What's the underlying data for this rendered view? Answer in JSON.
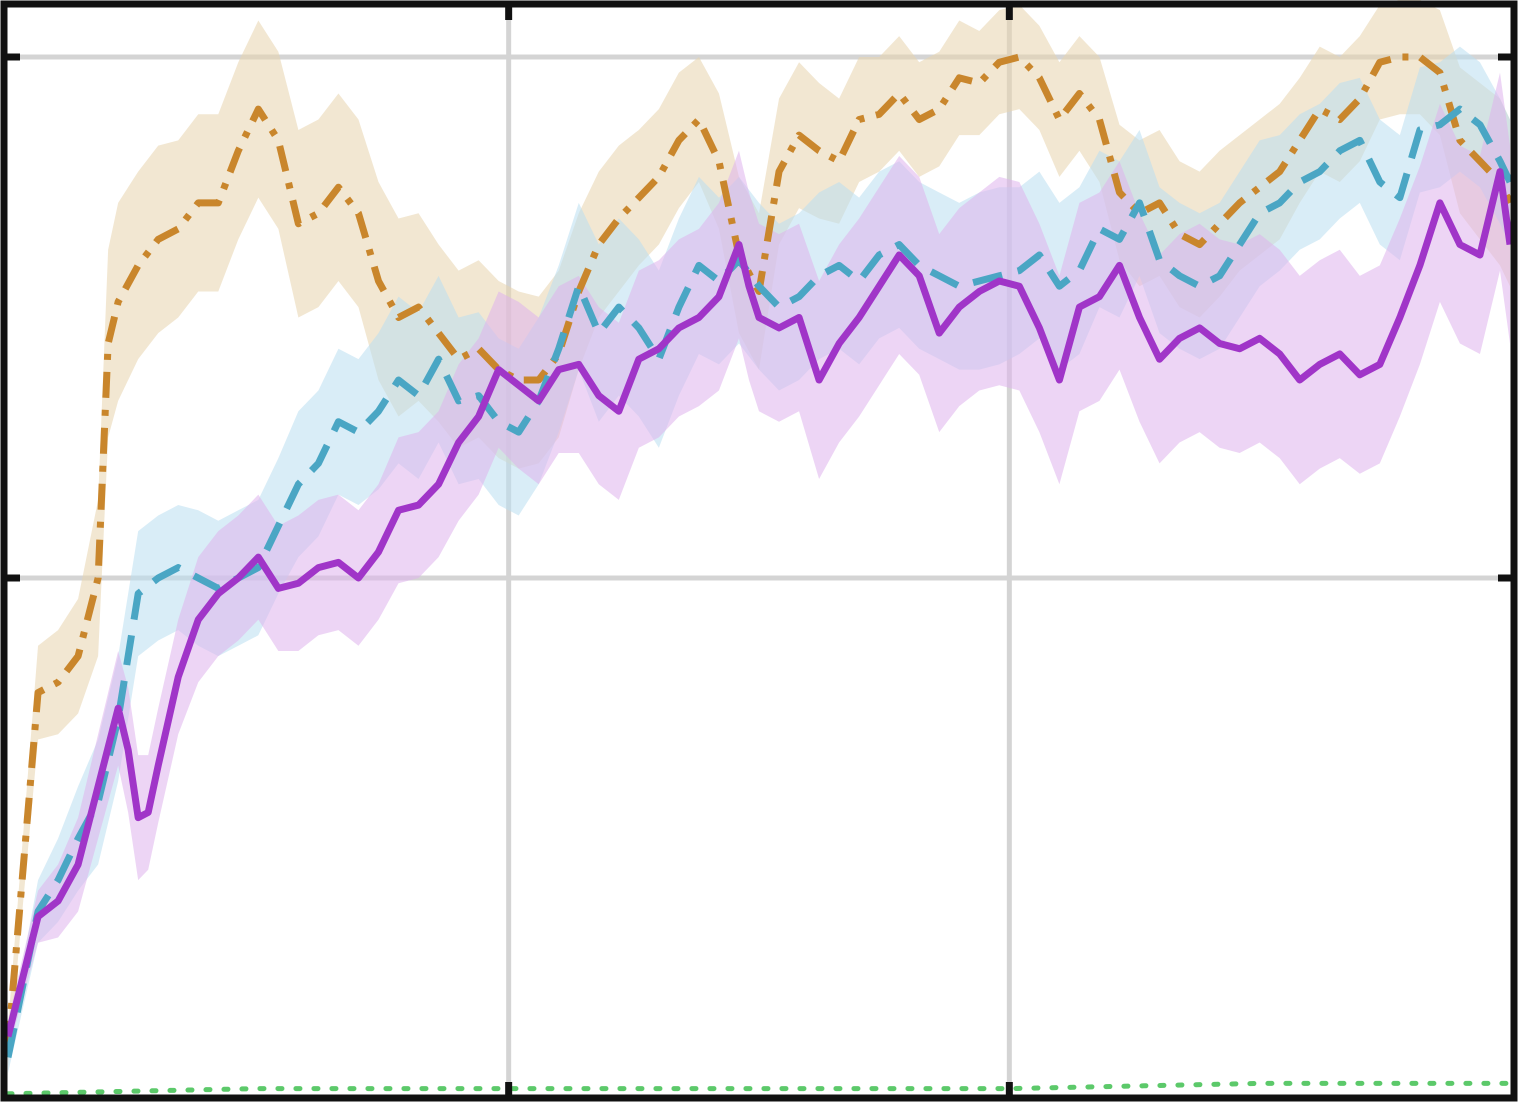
{
  "chart_data": {
    "type": "line",
    "title": "",
    "xlabel": "",
    "ylabel": "",
    "xlim": [
      0,
      3
    ],
    "ylim": [
      0,
      2.1
    ],
    "grid": true,
    "x_gridlines": [
      1,
      2
    ],
    "y_gridlines": [
      1,
      2
    ],
    "series": [
      {
        "style": "dashdot",
        "color": "#c9862c",
        "band_color": "#e8d3ad",
        "x": [
          0,
          0.06,
          0.1,
          0.14,
          0.18,
          0.2,
          0.22,
          0.26,
          0.3,
          0.34,
          0.38,
          0.42,
          0.46,
          0.5,
          0.54,
          0.58,
          0.62,
          0.66,
          0.7,
          0.74,
          0.78,
          0.82,
          0.86,
          0.9,
          0.94,
          0.98,
          1.02,
          1.06,
          1.1,
          1.14,
          1.18,
          1.22,
          1.26,
          1.3,
          1.34,
          1.38,
          1.42,
          1.46,
          1.5,
          1.54,
          1.58,
          1.62,
          1.66,
          1.7,
          1.74,
          1.78,
          1.82,
          1.86,
          1.9,
          1.94,
          1.98,
          2.02,
          2.06,
          2.1,
          2.14,
          2.18,
          2.22,
          2.26,
          2.3,
          2.34,
          2.38,
          2.42,
          2.46,
          2.5,
          2.54,
          2.58,
          2.62,
          2.66,
          2.7,
          2.74,
          2.78,
          2.82,
          2.86,
          2.9,
          2.94,
          2.98,
          3.0
        ],
        "y": [
          0.1,
          0.78,
          0.8,
          0.85,
          1.0,
          1.45,
          1.53,
          1.6,
          1.65,
          1.67,
          1.72,
          1.72,
          1.82,
          1.9,
          1.84,
          1.68,
          1.7,
          1.75,
          1.7,
          1.57,
          1.5,
          1.52,
          1.47,
          1.42,
          1.44,
          1.4,
          1.38,
          1.38,
          1.43,
          1.55,
          1.64,
          1.69,
          1.73,
          1.77,
          1.84,
          1.88,
          1.8,
          1.62,
          1.55,
          1.78,
          1.85,
          1.82,
          1.8,
          1.88,
          1.89,
          1.93,
          1.88,
          1.9,
          1.96,
          1.95,
          1.99,
          2.0,
          1.96,
          1.88,
          1.93,
          1.88,
          1.74,
          1.7,
          1.72,
          1.66,
          1.64,
          1.68,
          1.72,
          1.75,
          1.78,
          1.84,
          1.9,
          1.88,
          1.92,
          1.99,
          2.0,
          2.0,
          1.97,
          1.84,
          1.8,
          1.76,
          1.72
        ],
        "band_halfwidth": [
          0.04,
          0.09,
          0.1,
          0.11,
          0.15,
          0.18,
          0.19,
          0.18,
          0.18,
          0.17,
          0.17,
          0.17,
          0.17,
          0.17,
          0.17,
          0.18,
          0.18,
          0.18,
          0.18,
          0.19,
          0.19,
          0.18,
          0.17,
          0.17,
          0.17,
          0.17,
          0.17,
          0.16,
          0.16,
          0.15,
          0.14,
          0.14,
          0.13,
          0.13,
          0.13,
          0.12,
          0.13,
          0.15,
          0.15,
          0.14,
          0.14,
          0.13,
          0.12,
          0.12,
          0.11,
          0.11,
          0.11,
          0.11,
          0.11,
          0.1,
          0.1,
          0.1,
          0.1,
          0.11,
          0.11,
          0.12,
          0.13,
          0.14,
          0.14,
          0.14,
          0.14,
          0.14,
          0.13,
          0.13,
          0.13,
          0.12,
          0.12,
          0.12,
          0.12,
          0.11,
          0.11,
          0.11,
          0.12,
          0.14,
          0.15,
          0.16,
          0.16
        ]
      },
      {
        "style": "dashed",
        "color": "#4aa6c4",
        "band_color": "#b9dff0",
        "x": [
          0,
          0.06,
          0.1,
          0.14,
          0.18,
          0.22,
          0.26,
          0.3,
          0.34,
          0.38,
          0.42,
          0.46,
          0.5,
          0.54,
          0.58,
          0.62,
          0.66,
          0.7,
          0.74,
          0.78,
          0.82,
          0.86,
          0.9,
          0.94,
          0.98,
          1.02,
          1.06,
          1.1,
          1.14,
          1.18,
          1.22,
          1.26,
          1.3,
          1.34,
          1.38,
          1.42,
          1.46,
          1.5,
          1.54,
          1.58,
          1.62,
          1.66,
          1.7,
          1.74,
          1.78,
          1.82,
          1.86,
          1.9,
          1.94,
          1.98,
          2.02,
          2.06,
          2.1,
          2.14,
          2.18,
          2.22,
          2.26,
          2.3,
          2.34,
          2.38,
          2.42,
          2.46,
          2.5,
          2.54,
          2.58,
          2.62,
          2.66,
          2.7,
          2.74,
          2.78,
          2.82,
          2.86,
          2.9,
          2.94,
          2.98,
          3.0
        ],
        "y": [
          0.08,
          0.36,
          0.42,
          0.5,
          0.57,
          0.73,
          0.97,
          1.0,
          1.02,
          1.0,
          0.98,
          1.0,
          1.02,
          1.1,
          1.18,
          1.22,
          1.3,
          1.28,
          1.32,
          1.38,
          1.35,
          1.42,
          1.34,
          1.35,
          1.3,
          1.28,
          1.34,
          1.44,
          1.56,
          1.47,
          1.52,
          1.48,
          1.42,
          1.52,
          1.6,
          1.57,
          1.61,
          1.56,
          1.52,
          1.54,
          1.58,
          1.6,
          1.57,
          1.62,
          1.64,
          1.6,
          1.58,
          1.56,
          1.57,
          1.58,
          1.59,
          1.62,
          1.56,
          1.59,
          1.67,
          1.65,
          1.72,
          1.61,
          1.58,
          1.56,
          1.58,
          1.64,
          1.7,
          1.72,
          1.76,
          1.78,
          1.82,
          1.84,
          1.76,
          1.73,
          1.86,
          1.87,
          1.9,
          1.87,
          1.8,
          1.76
        ],
        "band_halfwidth": [
          0.03,
          0.06,
          0.08,
          0.1,
          0.12,
          0.12,
          0.12,
          0.12,
          0.12,
          0.13,
          0.13,
          0.13,
          0.13,
          0.13,
          0.14,
          0.14,
          0.14,
          0.14,
          0.15,
          0.16,
          0.16,
          0.16,
          0.16,
          0.16,
          0.16,
          0.16,
          0.16,
          0.16,
          0.16,
          0.17,
          0.17,
          0.17,
          0.17,
          0.17,
          0.17,
          0.16,
          0.16,
          0.16,
          0.16,
          0.16,
          0.16,
          0.16,
          0.16,
          0.16,
          0.16,
          0.16,
          0.16,
          0.16,
          0.17,
          0.17,
          0.16,
          0.16,
          0.16,
          0.16,
          0.15,
          0.15,
          0.14,
          0.14,
          0.14,
          0.14,
          0.14,
          0.14,
          0.14,
          0.13,
          0.13,
          0.13,
          0.13,
          0.12,
          0.12,
          0.12,
          0.12,
          0.12,
          0.12,
          0.12,
          0.12,
          0.12
        ]
      },
      {
        "style": "solid",
        "color": "#a035c8",
        "band_color": "#deb2ec",
        "x": [
          0,
          0.06,
          0.1,
          0.14,
          0.18,
          0.22,
          0.24,
          0.26,
          0.28,
          0.3,
          0.34,
          0.38,
          0.42,
          0.46,
          0.5,
          0.54,
          0.58,
          0.62,
          0.66,
          0.7,
          0.74,
          0.78,
          0.82,
          0.86,
          0.9,
          0.94,
          0.98,
          1.02,
          1.06,
          1.1,
          1.14,
          1.18,
          1.22,
          1.26,
          1.3,
          1.34,
          1.38,
          1.42,
          1.46,
          1.48,
          1.5,
          1.54,
          1.58,
          1.62,
          1.66,
          1.7,
          1.74,
          1.78,
          1.82,
          1.86,
          1.9,
          1.94,
          1.98,
          2.02,
          2.06,
          2.1,
          2.14,
          2.18,
          2.22,
          2.26,
          2.3,
          2.34,
          2.38,
          2.42,
          2.46,
          2.5,
          2.54,
          2.58,
          2.62,
          2.66,
          2.7,
          2.74,
          2.78,
          2.82,
          2.86,
          2.9,
          2.94,
          2.98,
          3.0
        ],
        "y": [
          0.12,
          0.35,
          0.38,
          0.45,
          0.6,
          0.75,
          0.67,
          0.54,
          0.55,
          0.64,
          0.81,
          0.92,
          0.97,
          1.0,
          1.04,
          0.98,
          0.99,
          1.02,
          1.03,
          1.0,
          1.05,
          1.13,
          1.14,
          1.18,
          1.26,
          1.31,
          1.4,
          1.37,
          1.34,
          1.4,
          1.41,
          1.35,
          1.32,
          1.42,
          1.44,
          1.48,
          1.5,
          1.54,
          1.64,
          1.56,
          1.5,
          1.48,
          1.5,
          1.38,
          1.45,
          1.5,
          1.56,
          1.62,
          1.58,
          1.47,
          1.52,
          1.55,
          1.57,
          1.56,
          1.48,
          1.38,
          1.52,
          1.54,
          1.6,
          1.5,
          1.42,
          1.46,
          1.48,
          1.45,
          1.44,
          1.46,
          1.43,
          1.38,
          1.41,
          1.43,
          1.39,
          1.41,
          1.5,
          1.6,
          1.72,
          1.64,
          1.62,
          1.78,
          1.64
        ],
        "band_halfwidth": [
          0.03,
          0.05,
          0.07,
          0.09,
          0.1,
          0.11,
          0.12,
          0.12,
          0.11,
          0.11,
          0.11,
          0.12,
          0.12,
          0.12,
          0.12,
          0.12,
          0.13,
          0.13,
          0.13,
          0.13,
          0.13,
          0.14,
          0.14,
          0.14,
          0.15,
          0.15,
          0.15,
          0.16,
          0.16,
          0.16,
          0.17,
          0.17,
          0.17,
          0.17,
          0.17,
          0.17,
          0.17,
          0.18,
          0.18,
          0.18,
          0.18,
          0.18,
          0.18,
          0.19,
          0.19,
          0.19,
          0.19,
          0.19,
          0.19,
          0.19,
          0.19,
          0.19,
          0.2,
          0.2,
          0.2,
          0.2,
          0.2,
          0.2,
          0.2,
          0.2,
          0.2,
          0.2,
          0.2,
          0.2,
          0.2,
          0.2,
          0.2,
          0.2,
          0.2,
          0.2,
          0.19,
          0.19,
          0.19,
          0.19,
          0.19,
          0.19,
          0.19,
          0.19,
          0.19
        ]
      },
      {
        "style": "dotted",
        "color": "#5cc96a",
        "x": [
          0,
          0.5,
          1.0,
          1.5,
          2.0,
          2.5,
          3.0
        ],
        "y": [
          0.01,
          0.02,
          0.02,
          0.02,
          0.02,
          0.03,
          0.03
        ]
      }
    ]
  }
}
